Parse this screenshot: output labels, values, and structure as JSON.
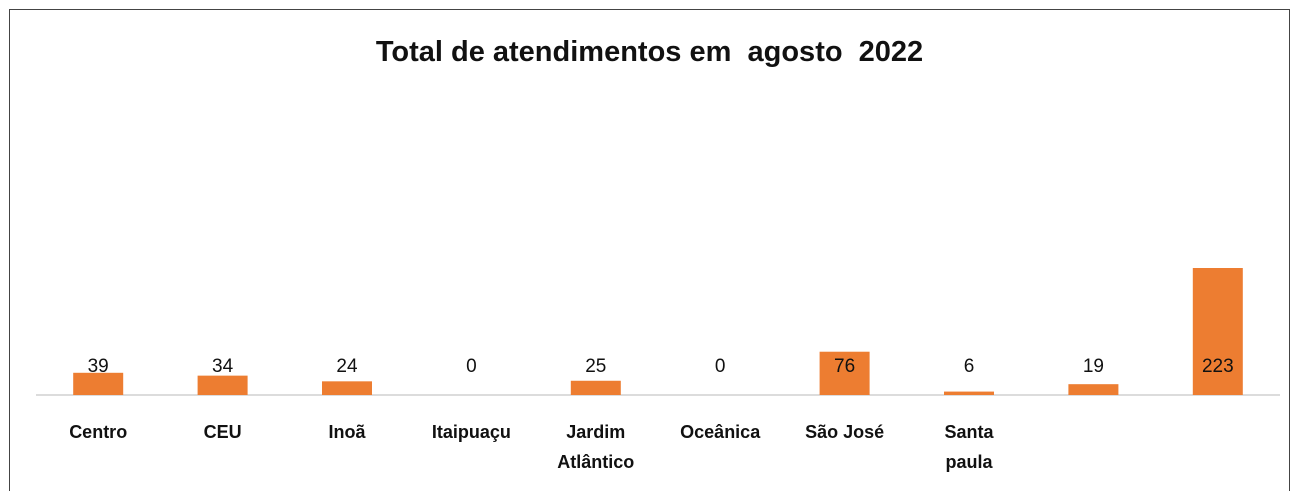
{
  "chart_data": {
    "type": "bar",
    "title": "Total de atendimentos em  agosto  2022",
    "categories": [
      "Centro",
      "CEU",
      "Inoã",
      "Itaipuaçu",
      "Jardim Atlântico",
      "Oceânica",
      "São José",
      "Santa paula",
      null,
      null
    ],
    "values": [
      39,
      34,
      24,
      0,
      25,
      0,
      76,
      6,
      19,
      223
    ],
    "color": "#ed7d31"
  }
}
